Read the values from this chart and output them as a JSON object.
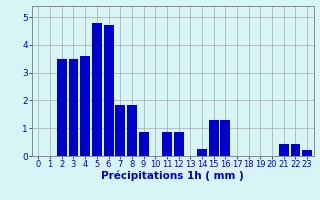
{
  "values": [
    0,
    0,
    3.5,
    3.5,
    3.6,
    4.8,
    4.7,
    1.85,
    1.85,
    0.85,
    0,
    0.85,
    0.85,
    0,
    0.25,
    1.3,
    1.3,
    0,
    0,
    0,
    0,
    0.45,
    0.45,
    0.2
  ],
  "categories": [
    "0",
    "1",
    "2",
    "3",
    "4",
    "5",
    "6",
    "7",
    "8",
    "9",
    "10",
    "11",
    "12",
    "13",
    "14",
    "15",
    "16",
    "17",
    "18",
    "19",
    "20",
    "21",
    "22",
    "23"
  ],
  "bar_color": "#0000cc",
  "background_color": "#d8f5f5",
  "grid_color": "#aaaaaa",
  "xlabel": "Précipitations 1h ( mm )",
  "xlabel_color": "#0000cc",
  "tick_color": "#0000cc",
  "ylim": [
    0,
    5.4
  ],
  "yticks": [
    0,
    1,
    2,
    3,
    4,
    5
  ],
  "label_fontsize": 7.5,
  "tick_fontsize": 6.0
}
